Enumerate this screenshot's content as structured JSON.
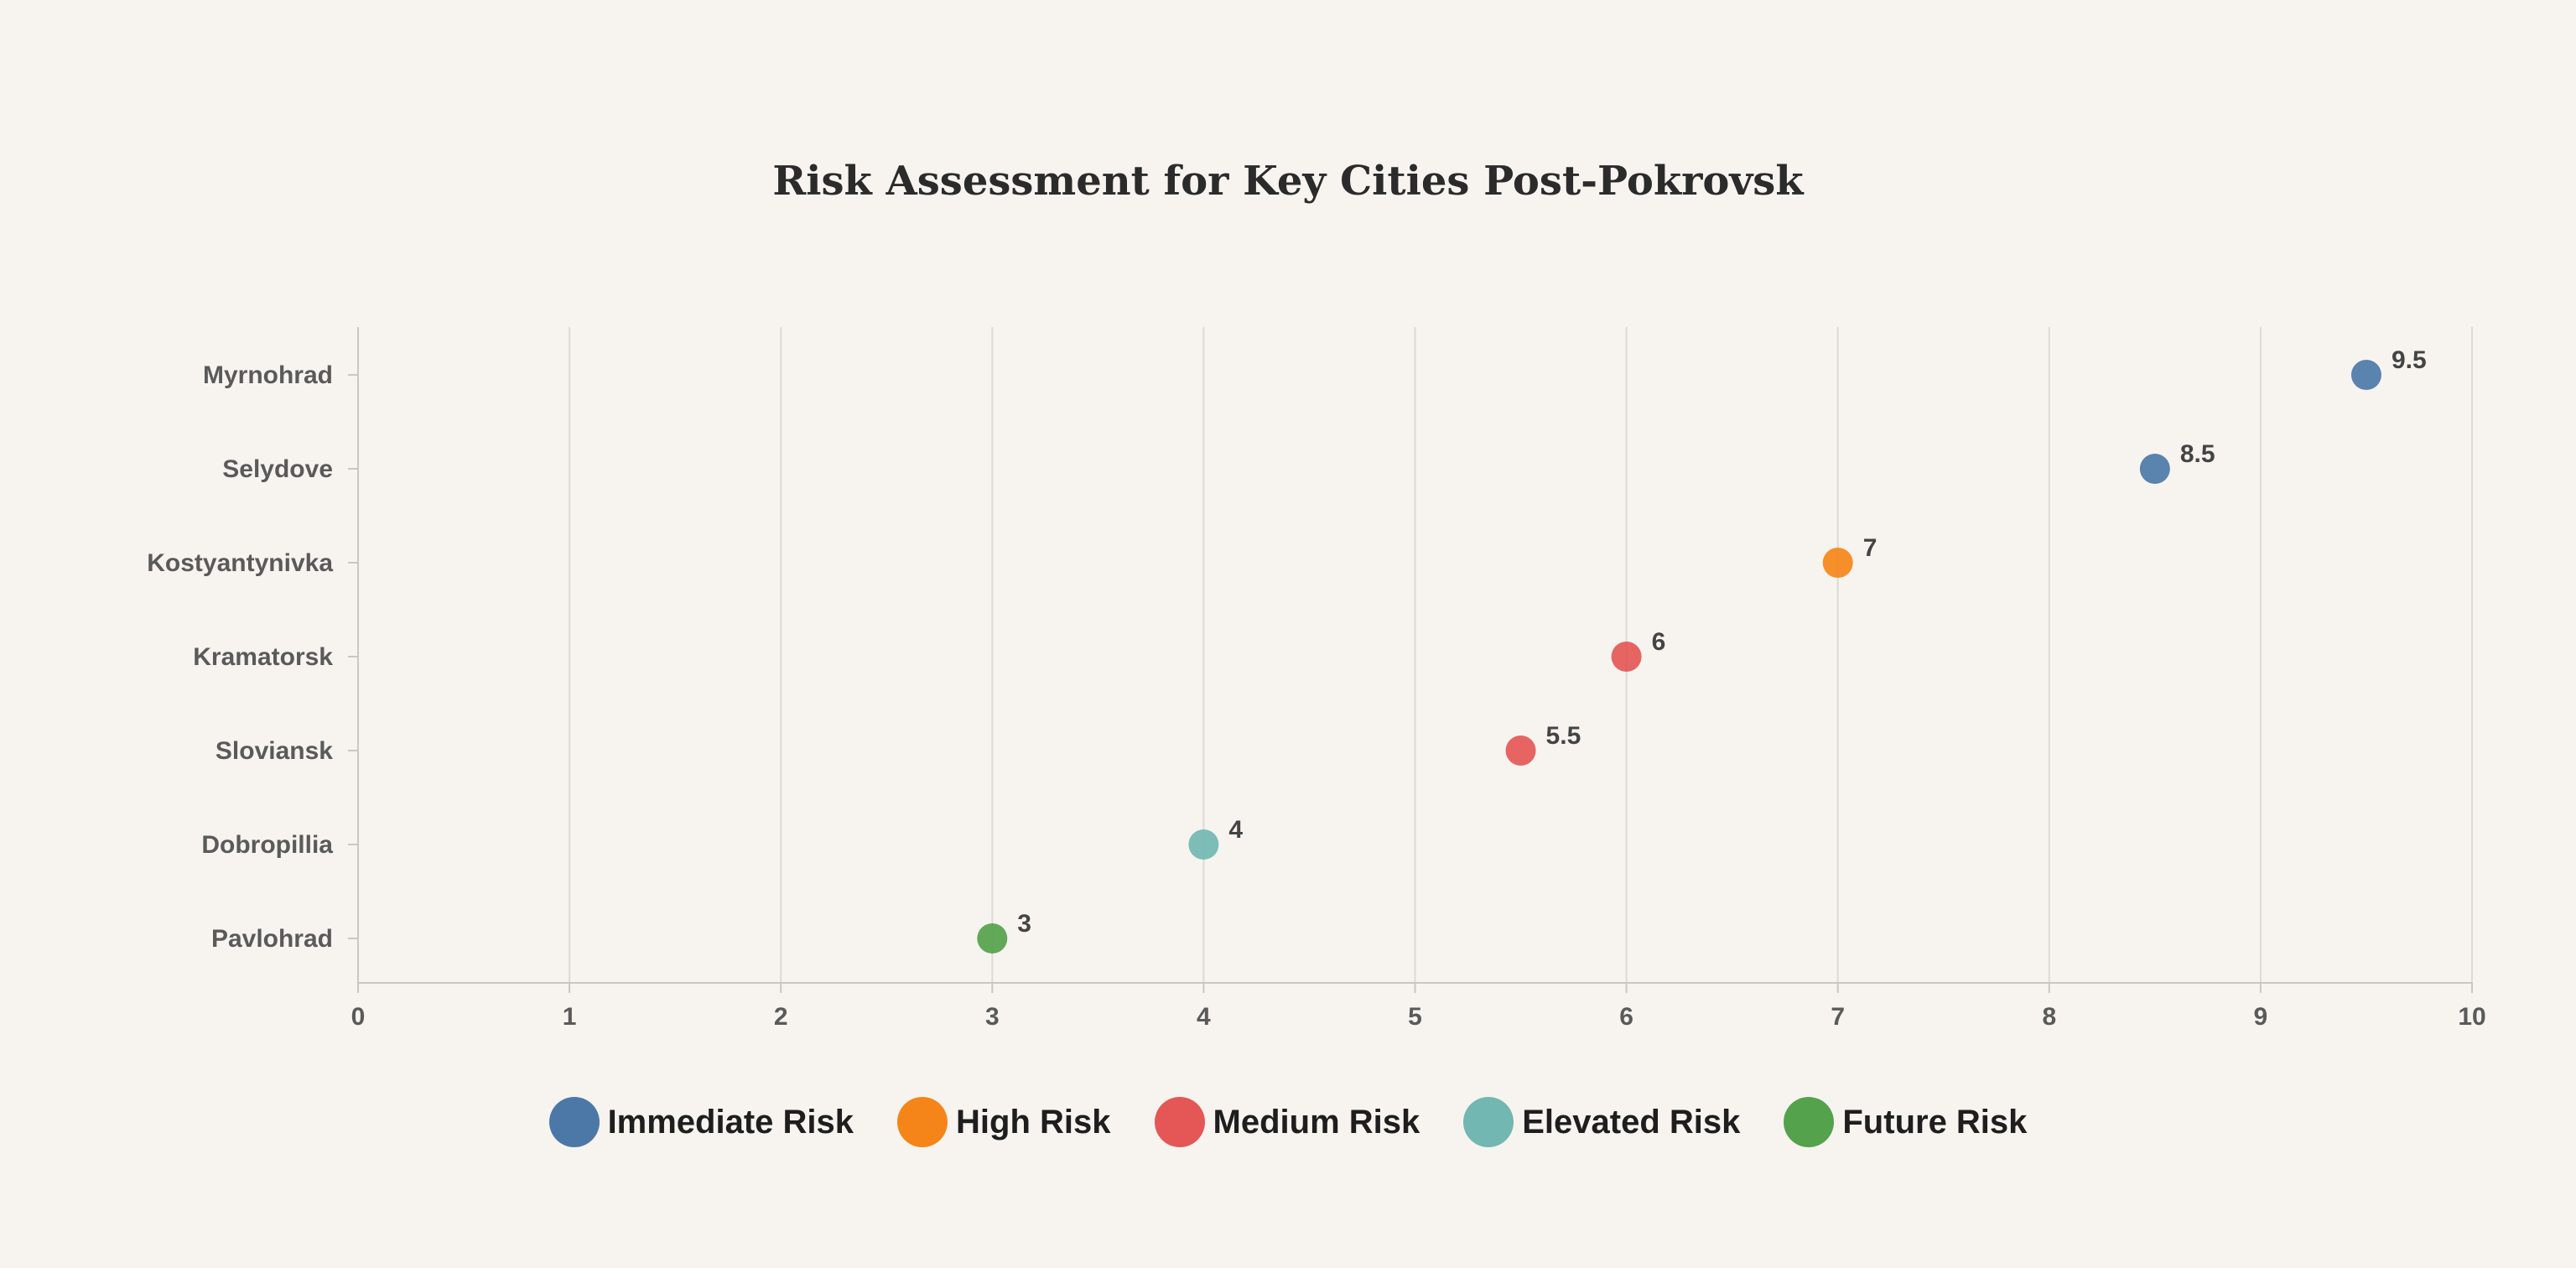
{
  "chart_data": {
    "type": "scatter",
    "title": "Risk Assessment for Key Cities Post-Pokrovsk",
    "xlabel": "",
    "ylabel": "",
    "xlim": [
      0,
      10
    ],
    "x_ticks": [
      0,
      1,
      2,
      3,
      4,
      5,
      6,
      7,
      8,
      9,
      10
    ],
    "grid": true,
    "legend_position": "bottom",
    "categories": [
      "Myrnohrad",
      "Selydove",
      "Kostyantynivka",
      "Kramatorsk",
      "Sloviansk",
      "Dobropillia",
      "Pavlohrad"
    ],
    "points": [
      {
        "city": "Myrnohrad",
        "value": 9.5,
        "label": "9.5",
        "risk": "Immediate Risk"
      },
      {
        "city": "Selydove",
        "value": 8.5,
        "label": "8.5",
        "risk": "Immediate Risk"
      },
      {
        "city": "Kostyantynivka",
        "value": 7,
        "label": "7",
        "risk": "High Risk"
      },
      {
        "city": "Kramatorsk",
        "value": 6,
        "label": "6",
        "risk": "Medium Risk"
      },
      {
        "city": "Sloviansk",
        "value": 5.5,
        "label": "5.5",
        "risk": "Medium Risk"
      },
      {
        "city": "Dobropillia",
        "value": 4,
        "label": "4",
        "risk": "Elevated Risk"
      },
      {
        "city": "Pavlohrad",
        "value": 3,
        "label": "3",
        "risk": "Future Risk"
      }
    ],
    "legend": [
      {
        "name": "Immediate Risk",
        "color": "#4c78a8"
      },
      {
        "name": "High Risk",
        "color": "#f58518"
      },
      {
        "name": "Medium Risk",
        "color": "#e45756"
      },
      {
        "name": "Elevated Risk",
        "color": "#72b7b2"
      },
      {
        "name": "Future Risk",
        "color": "#54a24b"
      }
    ]
  }
}
